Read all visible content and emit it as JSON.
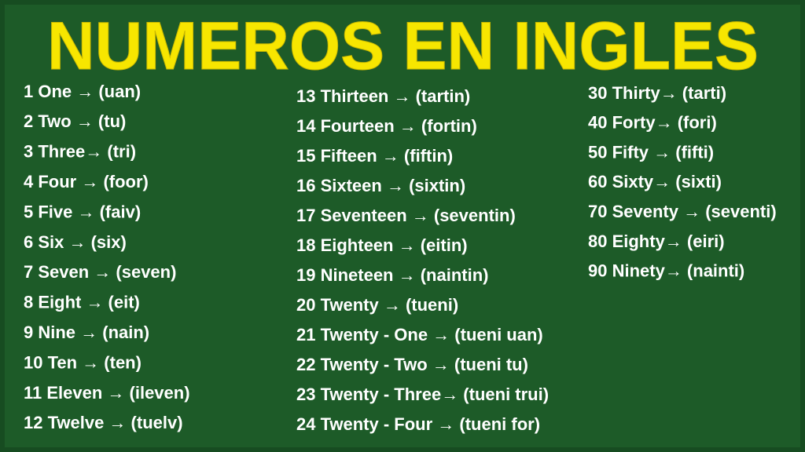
{
  "title": "NUMEROS EN INGLES",
  "columns": [
    [
      "1 One → (uan)",
      "2 Two → (tu)",
      "3 Three→ (tri)",
      "4 Four → (foor)",
      "5 Five → (faiv)",
      "6 Six → (six)",
      "7 Seven → (seven)",
      "8 Eight → (eit)",
      "9 Nine → (nain)",
      "10 Ten → (ten)",
      "11 Eleven → (ileven)",
      "12 Twelve → (tuelv)"
    ],
    [
      "13 Thirteen → (tartin)",
      "14 Fourteen → (fortin)",
      "15 Fifteen → (fiftin)",
      "16 Sixteen → (sixtin)",
      "17 Seventeen → (seventin)",
      "18 Eighteen → (eitin)",
      "19 Nineteen → (naintin)",
      "20 Twenty → (tueni)",
      "21 Twenty - One → (tueni uan)",
      "22 Twenty - Two → (tueni tu)",
      "23 Twenty - Three→ (tueni trui)",
      "24 Twenty - Four → (tueni for)"
    ],
    [
      "30 Thirty→ (tarti)",
      "40 Forty→ (fori)",
      "50 Fifty → (fifti)",
      "60 Sixty→ (sixti)",
      "70 Seventy → (seventi)",
      "80 Eighty→ (eiri)",
      "90 Ninety→ (nainti)"
    ]
  ]
}
